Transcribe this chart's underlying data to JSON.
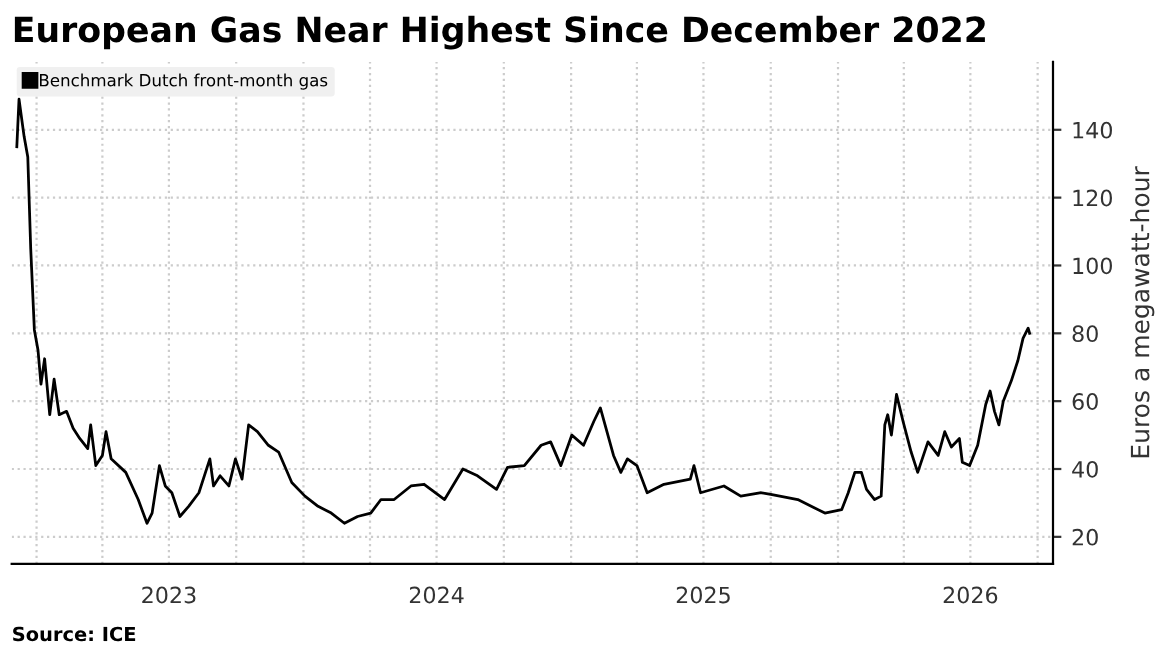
{
  "chart_data": {
    "type": "line",
    "title": "European Gas Near Highest Since December 2022",
    "ylabel": "Euros a megawatt-hour",
    "annotations": [
      "Source: ICE"
    ],
    "x": [
      "2022-12-05",
      "2022-12-08",
      "2022-12-15",
      "2022-12-20",
      "2022-12-24",
      "2022-12-29",
      "2023-01-03",
      "2023-01-07",
      "2023-01-12",
      "2023-01-19",
      "2023-01-25",
      "2023-02-01",
      "2023-02-11",
      "2023-02-20",
      "2023-03-01",
      "2023-03-12",
      "2023-03-16",
      "2023-03-23",
      "2023-04-01",
      "2023-04-06",
      "2023-04-13",
      "2023-05-03",
      "2023-05-20",
      "2023-06-01",
      "2023-06-08",
      "2023-06-18",
      "2023-06-26",
      "2023-07-05",
      "2023-07-16",
      "2023-07-28",
      "2023-08-11",
      "2023-08-20",
      "2023-08-26",
      "2023-08-31",
      "2023-09-09",
      "2023-09-21",
      "2023-09-30",
      "2023-10-09",
      "2023-10-18",
      "2023-10-30",
      "2023-11-14",
      "2023-11-28",
      "2023-12-16",
      "2024-01-03",
      "2024-01-21",
      "2024-02-08",
      "2024-02-26",
      "2024-03-15",
      "2024-04-02",
      "2024-04-16",
      "2024-05-04",
      "2024-05-27",
      "2024-06-14",
      "2024-07-12",
      "2024-08-06",
      "2024-08-26",
      "2024-09-21",
      "2024-10-06",
      "2024-10-29",
      "2024-11-21",
      "2024-12-04",
      "2024-12-18",
      "2025-01-02",
      "2025-01-18",
      "2025-02-01",
      "2025-02-10",
      "2025-02-28",
      "2025-03-10",
      "2025-03-19",
      "2025-04-01",
      "2025-04-15",
      "2025-05-08",
      "2025-06-13",
      "2025-06-18",
      "2025-06-27",
      "2025-07-29",
      "2025-08-21",
      "2025-09-18",
      "2025-10-01",
      "2025-11-07",
      "2025-12-14",
      "2026-01-06",
      "2026-01-15",
      "2026-01-24",
      "2026-02-02",
      "2026-02-09",
      "2026-02-20",
      "2026-03-01",
      "2026-03-06",
      "2026-03-10",
      "2026-03-15",
      "2026-03-22",
      "2026-03-31",
      "2026-04-11",
      "2026-04-20",
      "2026-05-04",
      "2026-05-18",
      "2026-05-27",
      "2026-06-05",
      "2026-06-16",
      "2026-06-20",
      "2026-06-30",
      "2026-07-11",
      "2026-07-22",
      "2026-07-28",
      "2026-08-03",
      "2026-08-09",
      "2026-08-15",
      "2026-08-26",
      "2026-09-04",
      "2026-09-11",
      "2026-09-18",
      "2026-09-20"
    ],
    "series": [
      {
        "name": "Benchmark Dutch front-month gas",
        "color": "#000000",
        "values": [
          135,
          149,
          138,
          132,
          105,
          81,
          75,
          65,
          72.5,
          56,
          66.5,
          56,
          57,
          52,
          49,
          46,
          53,
          41,
          44,
          51,
          43,
          39,
          31,
          24,
          27,
          41,
          35,
          33,
          26,
          29,
          33,
          39,
          43,
          35,
          38,
          35,
          43,
          37,
          53,
          51,
          47,
          45,
          36,
          32,
          29,
          27,
          24,
          26,
          27,
          31,
          31,
          35,
          35.5,
          31,
          40,
          38,
          34,
          40.5,
          41,
          47,
          48,
          41,
          50,
          47,
          54,
          58,
          44,
          39,
          43,
          41,
          33,
          35.5,
          37,
          41,
          33,
          35,
          32,
          33,
          32.5,
          31,
          27,
          28,
          33,
          39,
          39,
          34,
          31,
          32,
          53,
          56,
          50,
          62,
          54,
          45,
          39,
          48,
          44,
          51,
          46.5,
          49,
          42,
          41,
          47,
          59,
          63,
          57,
          53,
          60,
          66,
          72,
          78.5,
          81.5,
          80
        ]
      }
    ],
    "xlim": [
      "2022-11-28",
      "2026-10-22"
    ],
    "xticks": [
      {
        "value": "2023-01-01",
        "label": null
      },
      {
        "value": "2023-04-01",
        "label": null
      },
      {
        "value": "2023-07-01",
        "label": "2023"
      },
      {
        "value": "2023-10-01",
        "label": null
      },
      {
        "value": "2024-01-01",
        "label": null
      },
      {
        "value": "2024-04-01",
        "label": null
      },
      {
        "value": "2024-07-01",
        "label": "2024"
      },
      {
        "value": "2024-10-01",
        "label": null
      },
      {
        "value": "2025-01-01",
        "label": null
      },
      {
        "value": "2025-04-01",
        "label": null
      },
      {
        "value": "2025-07-01",
        "label": "2025"
      },
      {
        "value": "2025-10-01",
        "label": null
      },
      {
        "value": "2026-01-01",
        "label": null
      },
      {
        "value": "2026-04-01",
        "label": null
      },
      {
        "value": "2026-07-01",
        "label": "2026"
      },
      {
        "value": "2026-10-01",
        "label": null
      }
    ],
    "ylim": [
      12,
      160
    ],
    "yticks": [
      20,
      40,
      60,
      80,
      100,
      120,
      140
    ],
    "grid": true,
    "legend": "top left",
    "line_style": "solid"
  }
}
